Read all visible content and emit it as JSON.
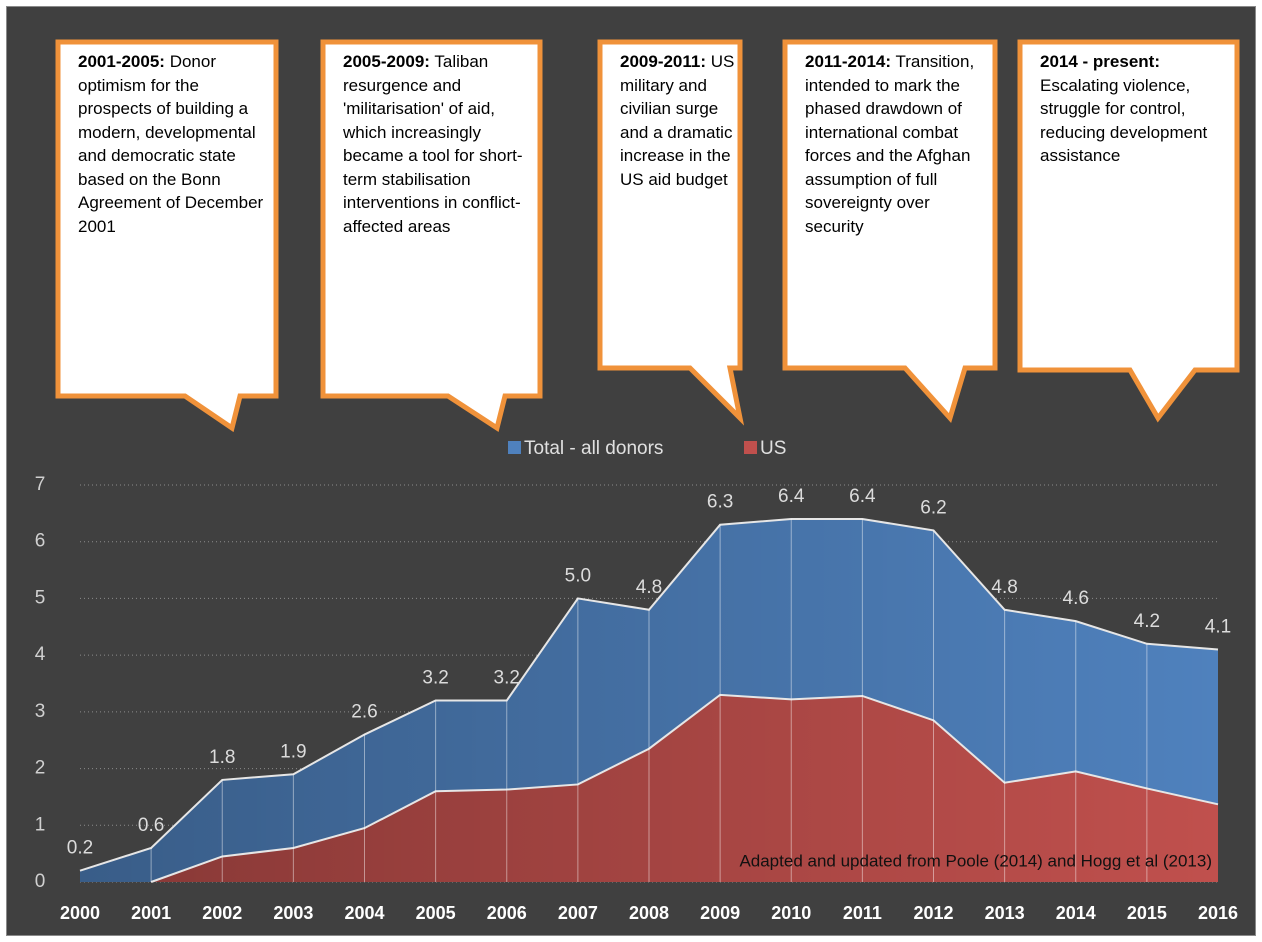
{
  "chart_data": {
    "type": "area",
    "annotations": [
      {
        "heading": "2001-2005:",
        "text": "Donor optimism for the prospects of building a modern, developmental and democratic state based on the Bonn Agreement of December 2001"
      },
      {
        "heading": "2005-2009:",
        "text": "Taliban resurgence and 'militarisation' of aid, which increasingly became a tool for short-term stabilisation interventions in conflict-affected areas"
      },
      {
        "heading": "2009-2011:",
        "text": "US military and civilian surge and a dramatic increase in the US aid budget"
      },
      {
        "heading": "2011-2014:",
        "text": "Transition, intended to mark the phased drawdown of international combat forces and the Afghan assumption of full sovereignty over security"
      },
      {
        "heading": "2014 - present:",
        "text": "Escalating violence, struggle for control, reducing development assistance"
      }
    ],
    "source_note": "Adapted and updated from Poole (2014) and Hogg et al (2013)",
    "categories": [
      "2000",
      "2001",
      "2002",
      "2003",
      "2004",
      "2005",
      "2006",
      "2007",
      "2008",
      "2009",
      "2010",
      "2011",
      "2012",
      "2013",
      "2014",
      "2015",
      "2016"
    ],
    "series": [
      {
        "name": "Total - all donors",
        "color": "#4f81bd",
        "values": [
          0.2,
          0.6,
          1.8,
          1.9,
          2.6,
          3.2,
          3.2,
          5.0,
          4.8,
          6.3,
          6.4,
          6.4,
          6.2,
          4.8,
          4.6,
          4.2,
          4.1
        ],
        "value_labels": [
          "0.2",
          "0.6",
          "1.8",
          "1.9",
          "2.6",
          "3.2",
          "3.2",
          "5.0",
          "4.8",
          "6.3",
          "6.4",
          "6.4",
          "6.2",
          "4.8",
          "4.6",
          "4.2",
          "4.1"
        ]
      },
      {
        "name": "US",
        "color": "#c0504d",
        "values": [
          null,
          0,
          0.45,
          0.6,
          0.95,
          1.6,
          1.63,
          1.72,
          2.35,
          3.3,
          3.22,
          3.28,
          2.85,
          1.75,
          1.95,
          1.65,
          1.37
        ]
      }
    ],
    "ylim": [
      0,
      7
    ],
    "yticks": [
      0,
      1,
      2,
      3,
      4,
      5,
      6,
      7
    ],
    "grid": true,
    "legend": "top"
  }
}
